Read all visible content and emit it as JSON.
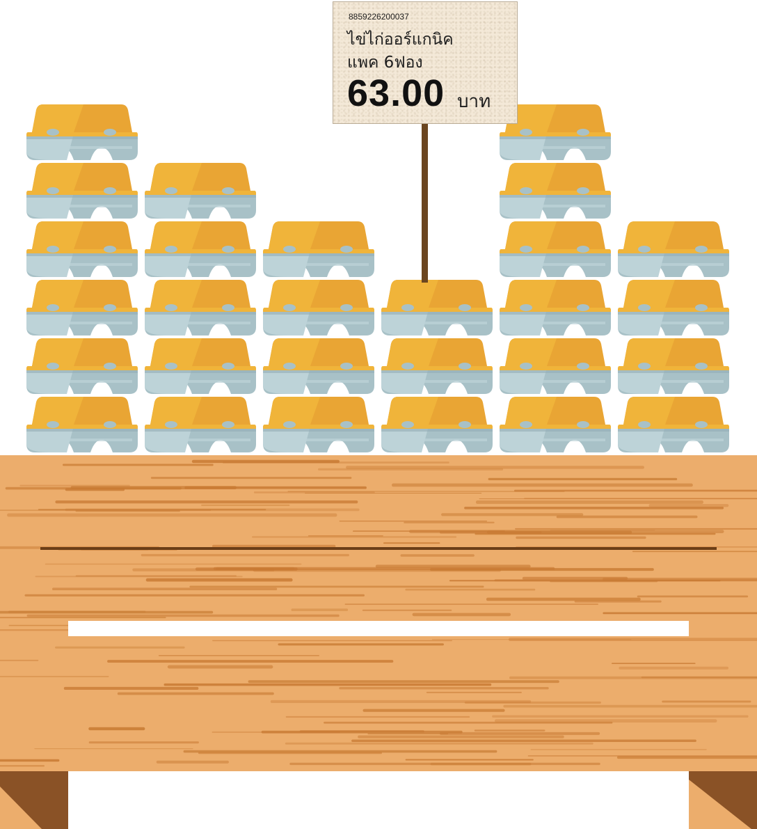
{
  "price_tag": {
    "barcode": "8859226200037",
    "name_line1": "ไข่ไก่ออร์แกนิค",
    "name_line2": "แพค 6ฟอง",
    "price": "63.00",
    "currency": "บาท"
  },
  "egg_stacks": [
    {
      "column": 1,
      "count": 6
    },
    {
      "column": 2,
      "count": 5
    },
    {
      "column": 3,
      "count": 4
    },
    {
      "column": 4,
      "count": 3
    },
    {
      "column": 5,
      "count": 6
    },
    {
      "column": 6,
      "count": 4
    }
  ],
  "colors": {
    "egg_lid": "#f0b43a",
    "egg_lid_shade": "#e9a534",
    "carton": "#a8c1c7",
    "carton_light": "#bdd3d8",
    "carton_shadow": "#93aeb5",
    "wood": "#ecad6c",
    "wood_grain": "#c87a33",
    "wood_dark": "#8a5226",
    "tag_paper": "#f4e9d8"
  }
}
